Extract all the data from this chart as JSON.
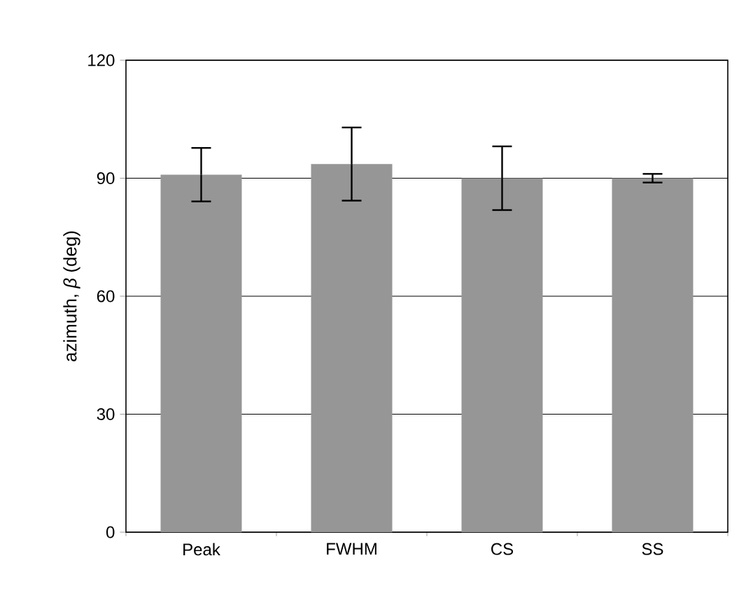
{
  "chart_data": {
    "type": "bar",
    "ylabel": "azimuth, *β* (deg)",
    "categories": [
      "Peak",
      "FWHM",
      "CS",
      "SS"
    ],
    "values": [
      90.9,
      93.6,
      90.0,
      90.0
    ],
    "errors": [
      6.8,
      9.3,
      8.1,
      1.1
    ],
    "color": "#969696",
    "ylim": [
      0,
      120
    ],
    "yticks": [
      0,
      30,
      60,
      90,
      120
    ],
    "grid": "y"
  }
}
